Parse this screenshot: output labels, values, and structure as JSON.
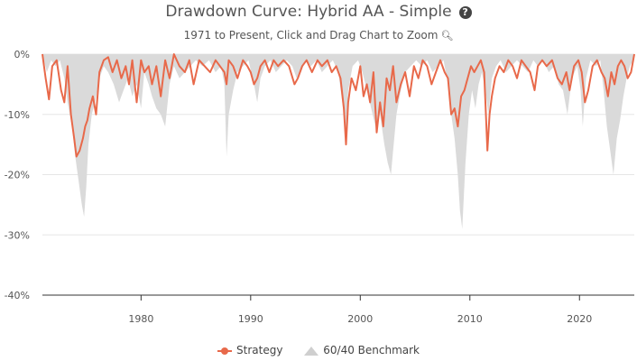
{
  "header": {
    "title": "Drawdown Curve: Hybrid AA - Simple",
    "help_icon": "question-circle-icon",
    "subtitle": "1971 to Present, Click and Drag Chart to Zoom",
    "zoom_icon": "zoom-in-icon"
  },
  "legend": {
    "strategy_label": "Strategy",
    "benchmark_label": "60/40 Benchmark"
  },
  "colors": {
    "strategy": "#e8694a",
    "benchmark": "#dadada",
    "grid": "#e6e6e6",
    "axis": "#333333"
  },
  "chart_data": {
    "type": "area",
    "title": "Drawdown Curve: Hybrid AA - Simple",
    "subtitle": "1971 to Present, Click and Drag Chart to Zoom",
    "x_range": [
      1971,
      2025
    ],
    "ylim": [
      -40,
      0
    ],
    "y_ticks": [
      0,
      -10,
      -20,
      -30,
      -40
    ],
    "y_tick_labels": [
      "0%",
      "-10%",
      "-20%",
      "-30%",
      "-40%"
    ],
    "x_ticks": [
      1980,
      1990,
      2000,
      2010,
      2020
    ],
    "x_tick_labels": [
      "1980",
      "1990",
      "2000",
      "2010",
      "2020"
    ],
    "grid": true,
    "legend_position": "bottom-center",
    "series": [
      {
        "name": "Strategy",
        "kind": "line",
        "x": [
          1971.0,
          1971.3,
          1971.6,
          1971.9,
          1972.3,
          1972.7,
          1973.0,
          1973.3,
          1973.6,
          1973.9,
          1974.1,
          1974.4,
          1974.7,
          1974.9,
          1975.1,
          1975.3,
          1975.6,
          1975.9,
          1976.2,
          1976.6,
          1977.0,
          1977.4,
          1977.8,
          1978.2,
          1978.6,
          1978.9,
          1979.2,
          1979.6,
          1980.0,
          1980.3,
          1980.7,
          1981.0,
          1981.4,
          1981.8,
          1982.2,
          1982.6,
          1983.0,
          1983.5,
          1984.0,
          1984.4,
          1984.8,
          1985.3,
          1985.8,
          1986.3,
          1986.8,
          1987.2,
          1987.6,
          1987.8,
          1988.0,
          1988.4,
          1988.8,
          1989.3,
          1989.7,
          1990.0,
          1990.3,
          1990.6,
          1990.9,
          1991.3,
          1991.7,
          1992.1,
          1992.5,
          1993.0,
          1993.5,
          1994.0,
          1994.3,
          1994.7,
          1995.1,
          1995.6,
          1996.1,
          1996.5,
          1997.0,
          1997.4,
          1997.8,
          1998.2,
          1998.5,
          1998.7,
          1998.9,
          1999.2,
          1999.6,
          2000.0,
          2000.3,
          2000.6,
          2000.9,
          2001.2,
          2001.5,
          2001.8,
          2002.1,
          2002.4,
          2002.7,
          2003.0,
          2003.3,
          2003.7,
          2004.1,
          2004.5,
          2004.9,
          2005.3,
          2005.7,
          2006.1,
          2006.5,
          2006.9,
          2007.3,
          2007.7,
          2008.0,
          2008.3,
          2008.6,
          2008.9,
          2009.2,
          2009.5,
          2009.8,
          2010.1,
          2010.4,
          2010.7,
          2011.0,
          2011.3,
          2011.6,
          2011.8,
          2012.0,
          2012.3,
          2012.7,
          2013.1,
          2013.5,
          2013.9,
          2014.3,
          2014.7,
          2015.1,
          2015.5,
          2015.9,
          2016.2,
          2016.6,
          2017.0,
          2017.5,
          2018.0,
          2018.4,
          2018.8,
          2019.1,
          2019.5,
          2019.9,
          2020.2,
          2020.5,
          2020.8,
          2021.2,
          2021.6,
          2022.0,
          2022.3,
          2022.6,
          2022.9,
          2023.2,
          2023.5,
          2023.8,
          2024.1,
          2024.4,
          2024.7,
          2025.0
        ],
        "values": [
          0,
          -4,
          -7.5,
          -2,
          -1,
          -6,
          -8,
          -2,
          -10,
          -14,
          -17,
          -16,
          -14,
          -12,
          -11,
          -9,
          -7,
          -10,
          -3,
          -1,
          -0.5,
          -3,
          -1,
          -4,
          -2,
          -5,
          -1,
          -8,
          -1,
          -3,
          -2,
          -5,
          -2,
          -7,
          -1,
          -4,
          0,
          -2,
          -3,
          -1,
          -5,
          -1,
          -2,
          -3,
          -1,
          -2,
          -3,
          -5,
          -1,
          -2,
          -4,
          -1,
          -2,
          -3,
          -5,
          -4,
          -2,
          -1,
          -3,
          -1,
          -2,
          -1,
          -2,
          -5,
          -4,
          -2,
          -1,
          -3,
          -1,
          -2,
          -1,
          -3,
          -2,
          -4,
          -9,
          -15,
          -8,
          -4,
          -6,
          -2,
          -7,
          -5,
          -8,
          -3,
          -13,
          -8,
          -12,
          -4,
          -6,
          -2,
          -8,
          -5,
          -3,
          -7,
          -2,
          -4,
          -1,
          -2,
          -5,
          -3,
          -1,
          -3,
          -4,
          -10,
          -9,
          -12,
          -7,
          -6,
          -4,
          -2,
          -3,
          -2,
          -1,
          -3,
          -16,
          -10,
          -7,
          -4,
          -2,
          -3,
          -1,
          -2,
          -4,
          -1,
          -2,
          -3,
          -6,
          -2,
          -1,
          -2,
          -1,
          -4,
          -5,
          -3,
          -6,
          -2,
          -1,
          -3,
          -8,
          -6,
          -2,
          -1,
          -3,
          -4,
          -7,
          -3,
          -5,
          -2,
          -1,
          -2,
          -4,
          -3,
          0
        ]
      },
      {
        "name": "60/40 Benchmark",
        "kind": "area",
        "x": [
          1971.0,
          1971.4,
          1971.8,
          1972.2,
          1972.6,
          1973.0,
          1973.3,
          1973.7,
          1974.0,
          1974.3,
          1974.6,
          1974.8,
          1975.0,
          1975.2,
          1975.5,
          1975.8,
          1976.2,
          1976.6,
          1977.0,
          1977.5,
          1978.0,
          1978.4,
          1978.8,
          1979.2,
          1979.6,
          1980.0,
          1980.3,
          1980.7,
          1981.0,
          1981.4,
          1981.8,
          1982.2,
          1982.6,
          1983.0,
          1983.5,
          1984.0,
          1984.5,
          1985.0,
          1985.6,
          1986.2,
          1986.8,
          1987.3,
          1987.6,
          1987.8,
          1988.0,
          1988.4,
          1988.8,
          1989.3,
          1989.8,
          1990.3,
          1990.6,
          1990.9,
          1991.3,
          1991.8,
          1992.3,
          1992.8,
          1993.3,
          1993.8,
          1994.2,
          1994.6,
          1995.0,
          1995.5,
          1996.0,
          1996.5,
          1997.0,
          1997.5,
          1998.0,
          1998.5,
          1998.7,
          1998.9,
          1999.3,
          1999.8,
          2000.2,
          2000.6,
          2001.0,
          2001.4,
          2001.8,
          2002.2,
          2002.5,
          2002.8,
          2003.0,
          2003.3,
          2003.7,
          2004.1,
          2004.6,
          2005.1,
          2005.6,
          2006.1,
          2006.6,
          2007.1,
          2007.6,
          2008.0,
          2008.3,
          2008.6,
          2008.9,
          2009.1,
          2009.3,
          2009.6,
          2009.9,
          2010.2,
          2010.5,
          2010.8,
          2011.1,
          2011.4,
          2011.7,
          2012.0,
          2012.4,
          2012.8,
          2013.3,
          2013.8,
          2014.3,
          2014.8,
          2015.3,
          2015.8,
          2016.2,
          2016.7,
          2017.2,
          2017.7,
          2018.1,
          2018.5,
          2018.9,
          2019.3,
          2019.8,
          2020.1,
          2020.3,
          2020.6,
          2021.0,
          2021.5,
          2021.9,
          2022.2,
          2022.5,
          2022.8,
          2023.1,
          2023.4,
          2023.7,
          2024.0,
          2024.3,
          2024.6,
          2024.9,
          2025.0
        ],
        "values": [
          0,
          -3,
          -1,
          -2,
          -1,
          -4,
          -8,
          -12,
          -17,
          -21,
          -25,
          -27,
          -22,
          -15,
          -10,
          -8,
          -4,
          -2,
          -3,
          -5,
          -8,
          -6,
          -4,
          -7,
          -5,
          -9,
          -3,
          -5,
          -7,
          -9,
          -10,
          -12,
          -5,
          -2,
          -4,
          -3,
          -2,
          -1,
          -2,
          -1,
          -3,
          -2,
          -5,
          -17,
          -10,
          -6,
          -3,
          -2,
          -1,
          -5,
          -8,
          -4,
          -2,
          -1,
          -3,
          -2,
          -1,
          -2,
          -4,
          -3,
          -1,
          -2,
          -1,
          -3,
          -2,
          -1,
          -3,
          -10,
          -14,
          -6,
          -2,
          -1,
          -3,
          -6,
          -9,
          -12,
          -10,
          -15,
          -18,
          -20,
          -16,
          -10,
          -6,
          -3,
          -2,
          -1,
          -2,
          -1,
          -3,
          -2,
          -1,
          -5,
          -10,
          -14,
          -20,
          -26,
          -29,
          -18,
          -10,
          -6,
          -9,
          -5,
          -3,
          -6,
          -10,
          -4,
          -2,
          -1,
          -3,
          -2,
          -1,
          -2,
          -3,
          -1,
          -2,
          -1,
          -3,
          -2,
          -5,
          -6,
          -10,
          -4,
          -2,
          -6,
          -12,
          -4,
          -1,
          -2,
          -1,
          -6,
          -12,
          -16,
          -20,
          -14,
          -11,
          -7,
          -4,
          -2,
          -1,
          0
        ]
      }
    ]
  }
}
